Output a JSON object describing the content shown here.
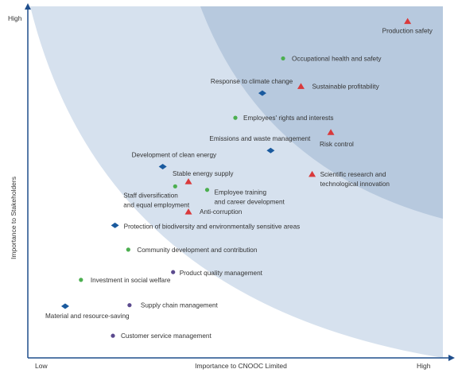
{
  "chart_data": {
    "type": "scatter",
    "title": "",
    "xlabel": "Importance to CNOOC Limited",
    "ylabel": "Importance to Stakeholders",
    "x_ticks": [
      "Low",
      "High"
    ],
    "y_ticks": [
      "High"
    ],
    "xlim": [
      0,
      100
    ],
    "ylim": [
      0,
      100
    ],
    "grid": false,
    "legend": "none",
    "colors": {
      "axis": "#1f4e8c",
      "zone_outer": "#d6e1ee",
      "zone_inner": "#b7c9de",
      "triangle": "#d9393b",
      "green_dot": "#4caf50",
      "purple_dot": "#5b4a8e",
      "diamond": "#1a5a9e"
    },
    "points": [
      {
        "label": "Production safety",
        "shape": "triangle",
        "x": 91.5,
        "y": 95.8
      },
      {
        "label": "Occupational health and safety",
        "shape": "green_dot",
        "x": 61.5,
        "y": 85.2
      },
      {
        "label": "Response to climate change",
        "shape": "diamond",
        "x": 56.5,
        "y": 75.3
      },
      {
        "label": "Sustainable profitability",
        "shape": "triangle",
        "x": 65.8,
        "y": 77.3
      },
      {
        "label": "Employees' rights and interests",
        "shape": "green_dot",
        "x": 50.0,
        "y": 68.3
      },
      {
        "label": "Risk control",
        "shape": "triangle",
        "x": 73.0,
        "y": 64.2
      },
      {
        "label": "Emissions and waste management",
        "shape": "diamond",
        "x": 58.5,
        "y": 59.0
      },
      {
        "label": "Development of clean energy",
        "shape": "diamond",
        "x": 32.5,
        "y": 54.4
      },
      {
        "label": "Stable energy supply",
        "shape": "triangle",
        "x": 38.7,
        "y": 50.2
      },
      {
        "label": "Scientific research and technological innovation",
        "shape": "triangle",
        "x": 68.5,
        "y": 52.3
      },
      {
        "label": "Staff diversification and equal employment",
        "shape": "green_dot",
        "x": 35.5,
        "y": 48.8
      },
      {
        "label": "Employee training and career development",
        "shape": "green_dot",
        "x": 43.2,
        "y": 47.8
      },
      {
        "label": "Anti-corruption",
        "shape": "triangle",
        "x": 38.7,
        "y": 41.6
      },
      {
        "label": "Protection of biodiversity and environmentally sensitive areas",
        "shape": "diamond",
        "x": 21.0,
        "y": 37.7
      },
      {
        "label": "Community development and contribution",
        "shape": "green_dot",
        "x": 24.2,
        "y": 30.8
      },
      {
        "label": "Product quality management",
        "shape": "purple_dot",
        "x": 35.0,
        "y": 24.4
      },
      {
        "label": "Investment in social welfare",
        "shape": "green_dot",
        "x": 12.8,
        "y": 22.2
      },
      {
        "label": "Supply chain management",
        "shape": "purple_dot",
        "x": 24.5,
        "y": 15.0
      },
      {
        "label": "Material and resource-saving",
        "shape": "diamond",
        "x": 9.0,
        "y": 14.7
      },
      {
        "label": "Customer service management",
        "shape": "purple_dot",
        "x": 20.5,
        "y": 6.3
      }
    ]
  }
}
